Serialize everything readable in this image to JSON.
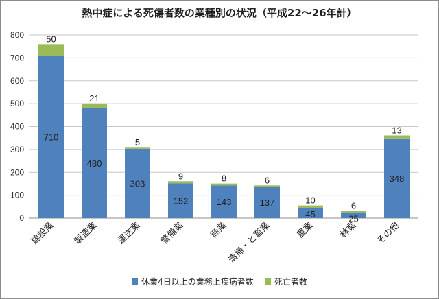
{
  "chart_data": {
    "type": "bar",
    "stacked": true,
    "title": "熱中症による死傷者数の業種別の状況（平成22～26年計）",
    "categories": [
      "建設業",
      "製造業",
      "運送業",
      "警備業",
      "商業",
      "清掃・と畜業",
      "農業",
      "林業",
      "その他"
    ],
    "series": [
      {
        "name": "休業4日以上の業務上疾病者数",
        "color": "#4F81BD",
        "values": [
          710,
          480,
          303,
          152,
          143,
          137,
          45,
          25,
          348
        ]
      },
      {
        "name": "死亡者数",
        "color": "#9BBB59",
        "values": [
          50,
          21,
          5,
          9,
          8,
          6,
          10,
          6,
          13
        ]
      }
    ],
    "ylim": [
      0,
      800
    ],
    "yticks": [
      0,
      100,
      200,
      300,
      400,
      500,
      600,
      700,
      800
    ],
    "grid": true,
    "legend_position": "bottom"
  }
}
